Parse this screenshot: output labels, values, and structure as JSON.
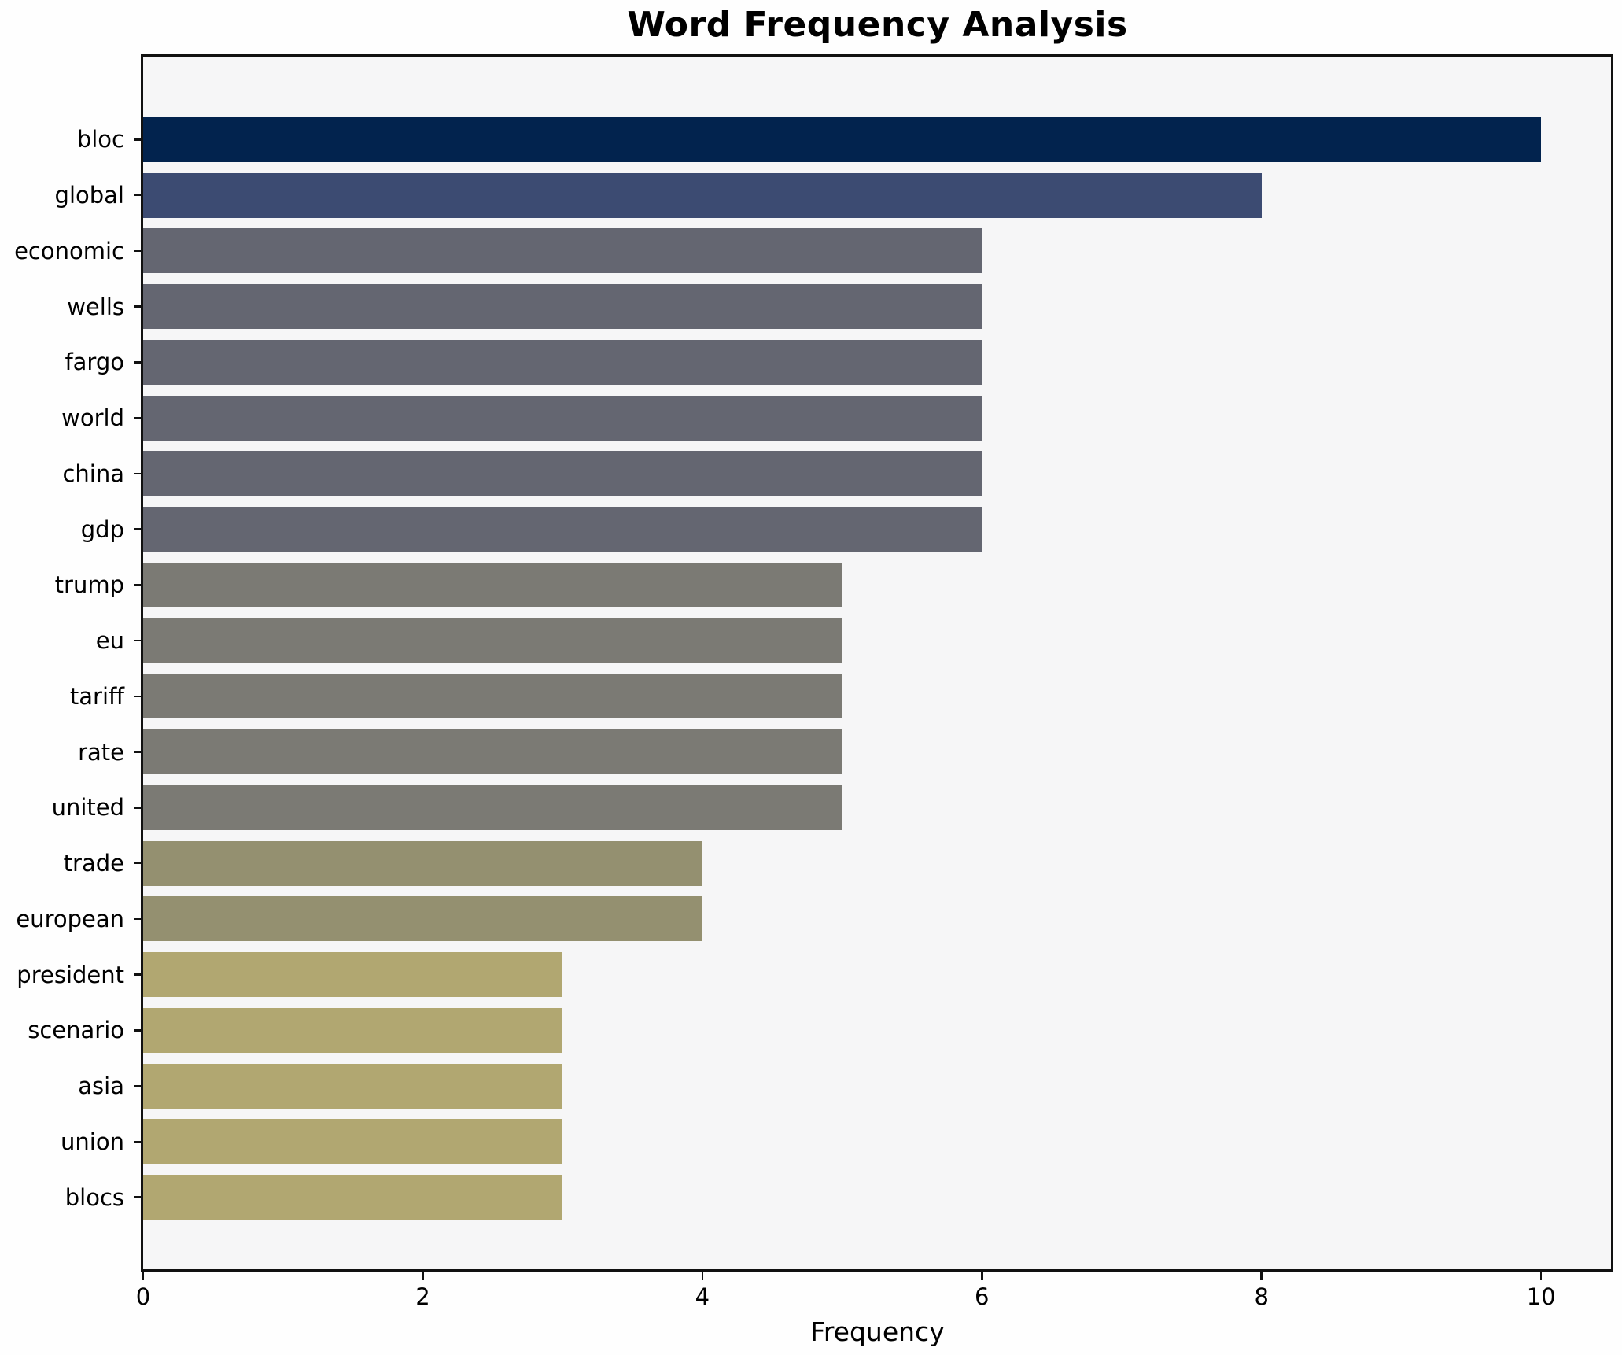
{
  "figure": {
    "background": "#fefefe",
    "plot_background": "#f6f6f7",
    "spine_color": "#111111",
    "text_color": "#000000"
  },
  "chart_data": {
    "type": "bar",
    "orientation": "horizontal",
    "title": "Word Frequency Analysis",
    "xlabel": "Frequency",
    "ylabel": "",
    "xlim": [
      0,
      10.5
    ],
    "x_ticks": [
      0,
      2,
      4,
      6,
      8,
      10
    ],
    "x_tick_labels": [
      "0",
      "2",
      "4",
      "6",
      "8",
      "10"
    ],
    "grid": false,
    "legend": null,
    "categories": [
      "bloc",
      "global",
      "economic",
      "wells",
      "fargo",
      "world",
      "china",
      "gdp",
      "trump",
      "eu",
      "tariff",
      "rate",
      "united",
      "trade",
      "european",
      "president",
      "scenario",
      "asia",
      "union",
      "blocs"
    ],
    "values": [
      10,
      8,
      6,
      6,
      6,
      6,
      6,
      6,
      5,
      5,
      5,
      5,
      5,
      4,
      4,
      3,
      3,
      3,
      3,
      3
    ],
    "bar_colors": [
      "#02234e",
      "#3c4b72",
      "#646671",
      "#646671",
      "#646671",
      "#646671",
      "#646671",
      "#646671",
      "#7b7a74",
      "#7b7a74",
      "#7b7a74",
      "#7b7a74",
      "#7b7a74",
      "#949070",
      "#949070",
      "#b1a771",
      "#b1a771",
      "#b1a771",
      "#b1a771",
      "#b1a771"
    ]
  }
}
